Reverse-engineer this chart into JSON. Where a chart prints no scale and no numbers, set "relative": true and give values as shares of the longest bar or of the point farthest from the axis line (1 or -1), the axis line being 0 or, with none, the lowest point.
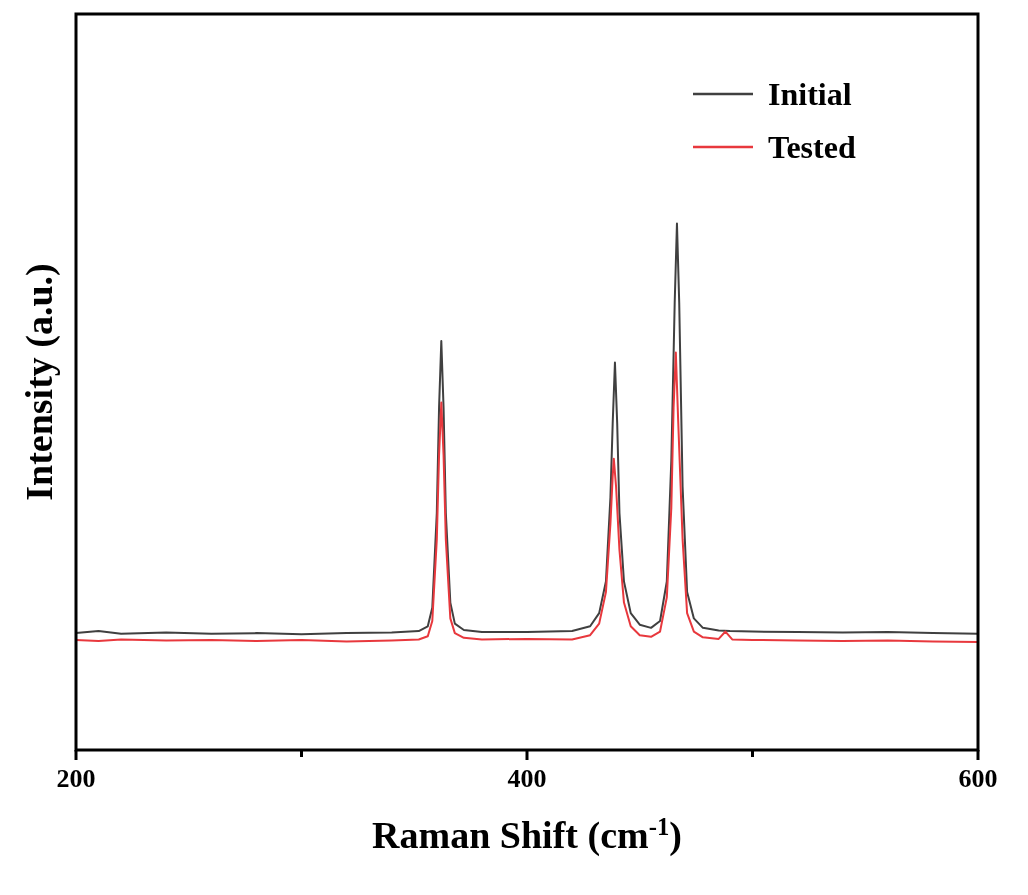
{
  "chart_data": {
    "type": "line",
    "xlabel": "Raman Shift (cm$^{-1}$)",
    "ylabel": "Intensity (a.u.)",
    "relative": true,
    "xlim": [
      200,
      600
    ],
    "xticks": [
      200,
      {
        "value": 300,
        "label": null
      },
      400,
      {
        "value": 500,
        "label": null
      },
      600
    ],
    "legend": "top right",
    "grid": false,
    "marker": "none",
    "line_style": "solid",
    "series": [
      {
        "name": "Initial",
        "color": "#404040",
        "x": [
          200,
          210,
          220,
          240,
          260,
          280,
          300,
          320,
          340,
          352,
          356,
          358,
          360,
          361,
          362,
          363,
          364,
          366,
          368,
          372,
          380,
          400,
          420,
          428,
          432,
          435,
          437,
          438,
          439,
          440,
          441,
          443,
          446,
          450,
          455,
          459,
          462,
          464,
          465.5,
          466.5,
          467.5,
          469,
          471,
          474,
          478,
          485,
          490,
          500,
          520,
          540,
          560,
          580,
          600
        ],
        "values": [
          0.222,
          0.226,
          0.221,
          0.223,
          0.221,
          0.222,
          0.22,
          0.222,
          0.223,
          0.226,
          0.235,
          0.27,
          0.45,
          0.65,
          0.777,
          0.65,
          0.45,
          0.28,
          0.24,
          0.228,
          0.224,
          0.224,
          0.226,
          0.235,
          0.26,
          0.32,
          0.48,
          0.62,
          0.736,
          0.62,
          0.45,
          0.32,
          0.26,
          0.238,
          0.232,
          0.245,
          0.32,
          0.55,
          0.85,
          1.0,
          0.85,
          0.5,
          0.3,
          0.25,
          0.232,
          0.227,
          0.226,
          0.225,
          0.224,
          0.223,
          0.224,
          0.222,
          0.221
        ]
      },
      {
        "name": "Tested",
        "color": "#e8383d",
        "x": [
          200,
          210,
          220,
          240,
          260,
          280,
          300,
          320,
          340,
          352,
          356,
          358,
          360,
          361,
          362,
          363,
          364,
          366,
          368,
          372,
          380,
          400,
          420,
          428,
          432,
          435,
          437,
          438,
          438.5,
          439.5,
          441,
          443,
          446,
          450,
          455,
          459,
          462,
          464,
          465,
          466,
          467,
          469,
          471,
          474,
          478,
          485,
          488,
          491,
          500,
          520,
          540,
          560,
          580,
          600
        ],
        "values": [
          0.209,
          0.207,
          0.21,
          0.208,
          0.209,
          0.207,
          0.209,
          0.206,
          0.208,
          0.21,
          0.216,
          0.245,
          0.4,
          0.56,
          0.66,
          0.56,
          0.4,
          0.25,
          0.222,
          0.213,
          0.21,
          0.211,
          0.21,
          0.218,
          0.24,
          0.3,
          0.43,
          0.52,
          0.553,
          0.5,
          0.38,
          0.28,
          0.235,
          0.218,
          0.215,
          0.225,
          0.29,
          0.46,
          0.65,
          0.755,
          0.63,
          0.4,
          0.26,
          0.225,
          0.214,
          0.211,
          0.225,
          0.21,
          0.209,
          0.208,
          0.207,
          0.208,
          0.206,
          0.205
        ]
      }
    ]
  }
}
